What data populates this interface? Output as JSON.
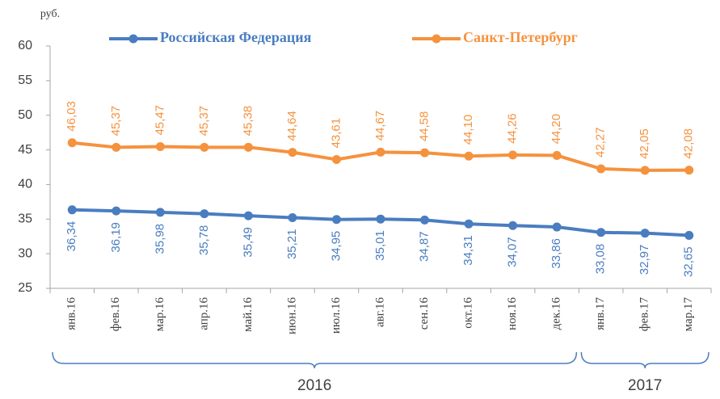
{
  "chart_data": {
    "type": "line",
    "y_unit": "руб.",
    "categories": [
      "янв.16",
      "фев.16",
      "мар.16",
      "апр.16",
      "май.16",
      "июн.16",
      "июл.16",
      "авг.16",
      "сен.16",
      "окт.16",
      "ноя.16",
      "дек.16",
      "янв.17",
      "фев.17",
      "мар.17"
    ],
    "year_groups": [
      "2016",
      "2017"
    ],
    "series": [
      {
        "name": "Российская Федерация",
        "color": "#4a7dc0",
        "values": [
          36.34,
          36.19,
          35.98,
          35.78,
          35.49,
          35.21,
          34.95,
          35.01,
          34.87,
          34.31,
          34.07,
          33.86,
          33.08,
          32.97,
          32.65
        ],
        "value_labels": [
          "36,34",
          "36,19",
          "35,98",
          "35,78",
          "35,49",
          "35,21",
          "34,95",
          "35,01",
          "34,87",
          "34,31",
          "34,07",
          "33,86",
          "33,08",
          "32,97",
          "32,65"
        ]
      },
      {
        "name": "Санкт-Петербург",
        "color": "#f5923e",
        "values": [
          46.03,
          45.37,
          45.47,
          45.37,
          45.38,
          44.64,
          43.61,
          44.67,
          44.58,
          44.1,
          44.26,
          44.2,
          42.27,
          42.05,
          42.08
        ],
        "value_labels": [
          "46,03",
          "45,37",
          "45,47",
          "45,37",
          "45,38",
          "44,64",
          "43,61",
          "44,67",
          "44,58",
          "44,10",
          "44,26",
          "44,20",
          "42,27",
          "42,05",
          "42,08"
        ]
      }
    ],
    "ylim": [
      25,
      60
    ],
    "yticks": [
      25,
      30,
      35,
      40,
      45,
      50,
      55,
      60
    ],
    "grid": false
  }
}
